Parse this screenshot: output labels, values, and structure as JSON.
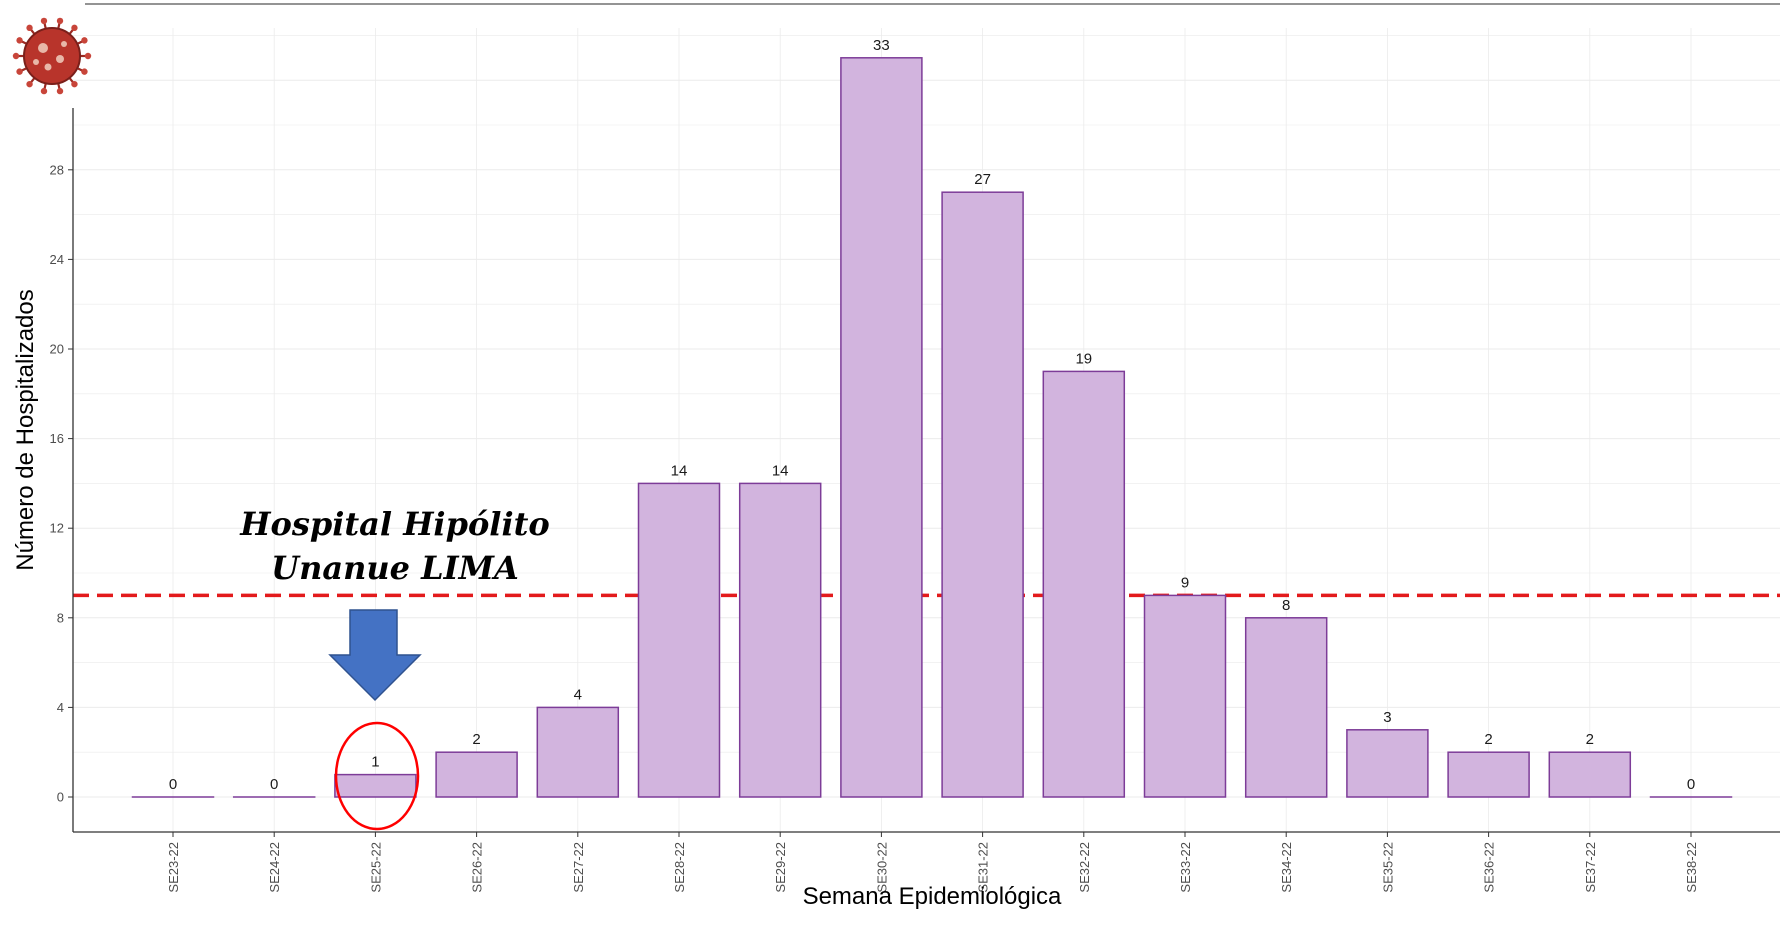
{
  "chart_data": {
    "type": "bar",
    "categories": [
      "SE23-22",
      "SE24-22",
      "SE25-22",
      "SE26-22",
      "SE27-22",
      "SE28-22",
      "SE29-22",
      "SE30-22",
      "SE31-22",
      "SE32-22",
      "SE33-22",
      "SE34-22",
      "SE35-22",
      "SE36-22",
      "SE37-22",
      "SE38-22"
    ],
    "values": [
      0,
      0,
      1,
      2,
      4,
      14,
      14,
      33,
      27,
      19,
      9,
      8,
      3,
      2,
      2,
      0
    ],
    "xlabel": "Semana Epidemiológica",
    "ylabel": "Número de Hospitalizados",
    "yticks": [
      0,
      4,
      8,
      12,
      16,
      20,
      24,
      28
    ],
    "ylim": [
      -1.6,
      35.5
    ],
    "grid": true,
    "reference_line": {
      "y": 9,
      "color": "#e31a1c",
      "style": "dashed"
    },
    "annotation": {
      "line1": "Hospital Hipólito",
      "line2": "Unanue LIMA",
      "highlight_category": "SE25-22"
    },
    "colors": {
      "bar_fill": "#d2b4de",
      "bar_stroke": "#7d3c98",
      "arrow": "#4472c4",
      "circle": "#ff0000",
      "grid": "#ebebeb"
    }
  },
  "logo": {
    "icon": "coronavirus-icon"
  }
}
